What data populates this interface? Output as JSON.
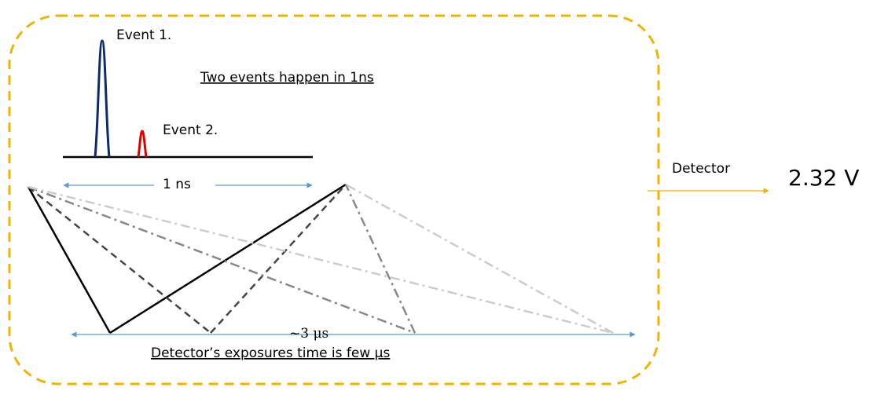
{
  "labels": {
    "event1": "Event 1.",
    "event2": "Event 2.",
    "two_events": "Two events happen in 1ns",
    "one_ns": "1 ns",
    "three_us": "~3 μs",
    "exposure": "Detector’s exposures time is few μs",
    "detector": "Detector",
    "voltage": "2.32 V"
  },
  "colors": {
    "frame": "#f0b400",
    "event1_pulse": "#0d2a6b",
    "event2_pulse": "#e00000",
    "arrow": "#5b9bd5"
  }
}
